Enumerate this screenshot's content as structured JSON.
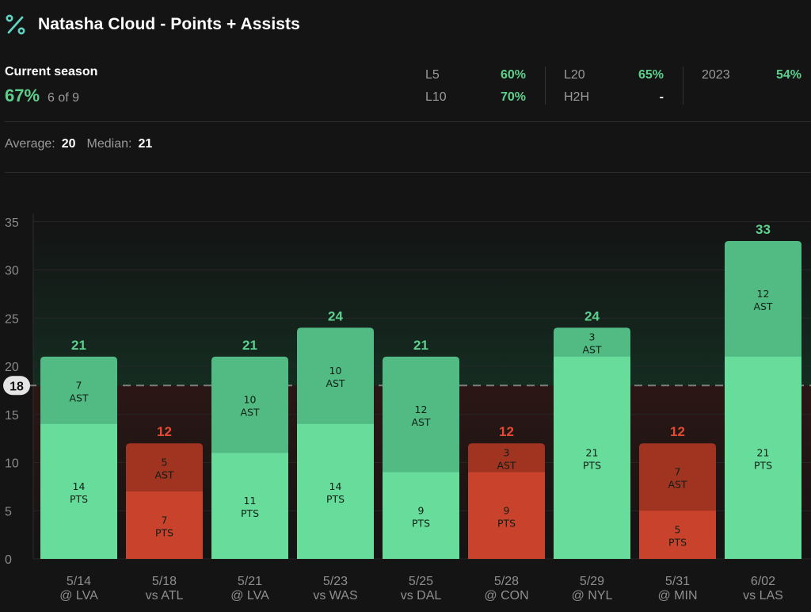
{
  "header": {
    "title": "Natasha Cloud - Points + Assists"
  },
  "season": {
    "label": "Current season",
    "hit_pct": "67%",
    "hit_count": "6 of 9"
  },
  "splits": [
    {
      "label": "L5",
      "value": "60%"
    },
    {
      "label": "L10",
      "value": "70%"
    },
    {
      "label": "L20",
      "value": "65%"
    },
    {
      "label": "H2H",
      "value": "-"
    },
    {
      "label": "2023",
      "value": "54%"
    }
  ],
  "summary": {
    "average_label": "Average:",
    "average_value": "20",
    "median_label": "Median:",
    "median_value": "21"
  },
  "colors": {
    "accent_green": "#5cd08d",
    "over_pts": "#68dc9a",
    "over_ast": "#52bb84",
    "under_pts": "#c9432c",
    "under_ast": "#a03420",
    "under_total_label": "#e24b33"
  },
  "chart_data": {
    "type": "bar",
    "stacked": true,
    "line": 18,
    "ylim": [
      0,
      35
    ],
    "yticks": [
      0,
      5,
      10,
      15,
      20,
      25,
      30,
      35
    ],
    "categories": [
      [
        "5/14",
        "@ LVA"
      ],
      [
        "5/18",
        "vs ATL"
      ],
      [
        "5/21",
        "@ LVA"
      ],
      [
        "5/23",
        "vs WAS"
      ],
      [
        "5/25",
        "vs DAL"
      ],
      [
        "5/28",
        "@ CON"
      ],
      [
        "5/29",
        "@ NYL"
      ],
      [
        "5/31",
        "@ MIN"
      ],
      [
        "6/02",
        "vs LAS"
      ]
    ],
    "series": [
      {
        "name": "PTS",
        "values": [
          14,
          7,
          11,
          14,
          9,
          9,
          21,
          5,
          21
        ]
      },
      {
        "name": "AST",
        "values": [
          7,
          5,
          10,
          10,
          12,
          3,
          3,
          7,
          12
        ]
      }
    ],
    "totals": [
      21,
      12,
      21,
      24,
      21,
      12,
      24,
      12,
      33
    ]
  }
}
